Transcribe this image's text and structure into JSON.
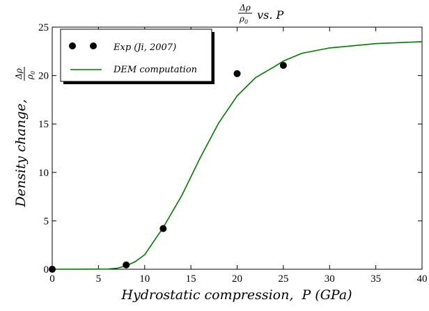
{
  "chart_data": {
    "type": "line",
    "title": {
      "frac_num": "Δρ",
      "frac_den_base": "ρ",
      "frac_den_sub": "0",
      "rest": " vs. P"
    },
    "xlabel": "Hydrostatic compression,  P (GPa)",
    "ylabel": {
      "text": "Density change,",
      "frac_num": "Δρ",
      "frac_den_base": "ρ",
      "frac_den_sub": "0"
    },
    "xlim": [
      0,
      40
    ],
    "ylim": [
      0,
      25
    ],
    "xticks": [
      0,
      5,
      10,
      15,
      20,
      25,
      30,
      35,
      40
    ],
    "yticks": [
      0,
      5,
      10,
      15,
      20,
      25
    ],
    "grid": false,
    "legend_position": "top-left",
    "series": [
      {
        "name": "Exp (Ji, 2007)",
        "kind": "scatter",
        "color": "#000000",
        "x": [
          0,
          8,
          12,
          20,
          25
        ],
        "y": [
          0.0,
          0.45,
          4.2,
          20.2,
          21.05
        ]
      },
      {
        "name": "DEM computation",
        "kind": "line",
        "color": "#007700",
        "x": [
          0,
          6,
          7,
          8,
          9,
          10,
          12,
          14,
          16,
          18,
          20,
          22,
          24,
          25,
          27,
          30,
          35,
          40
        ],
        "y": [
          0.0,
          0.02,
          0.1,
          0.35,
          0.8,
          1.5,
          4.3,
          7.6,
          11.5,
          15.1,
          17.9,
          19.8,
          20.9,
          21.5,
          22.3,
          22.85,
          23.3,
          23.5
        ]
      }
    ]
  }
}
